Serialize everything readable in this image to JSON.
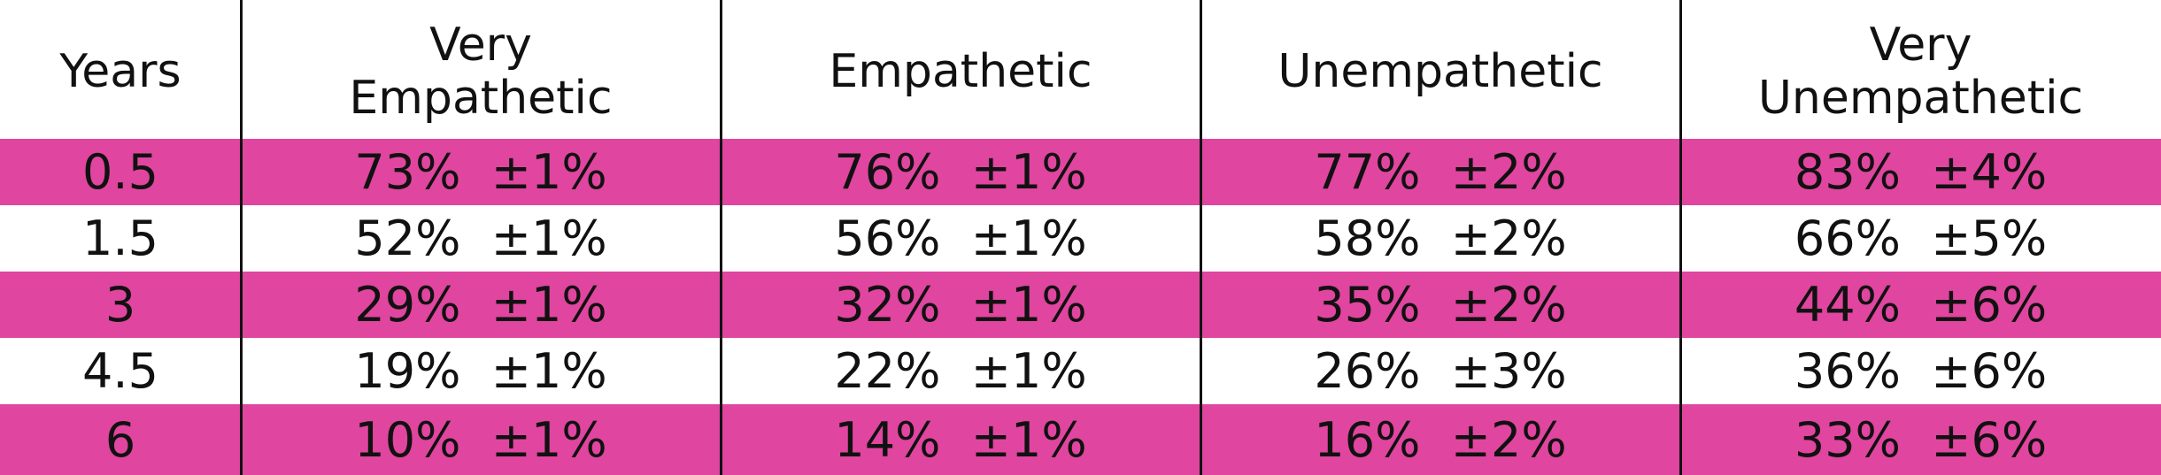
{
  "chart_data": {
    "type": "table",
    "columns": [
      [
        "Years"
      ],
      [
        "Very",
        "Empathetic"
      ],
      [
        "Empathetic"
      ],
      [
        "Unempathetic"
      ],
      [
        "Very",
        "Unempathetic"
      ]
    ],
    "rows": [
      [
        "0.5",
        "73%  ±1%",
        "76%  ±1%",
        "77%  ±2%",
        "83%  ±4%"
      ],
      [
        "1.5",
        "52%  ±1%",
        "56%  ±1%",
        "58%  ±2%",
        "66%  ±5%"
      ],
      [
        "3",
        "29%  ±1%",
        "32%  ±1%",
        "35%  ±2%",
        "44%  ±6%"
      ],
      [
        "4.5",
        "19%  ±1%",
        "22%  ±1%",
        "26%  ±3%",
        "36%  ±6%"
      ],
      [
        "6",
        "10%  ±1%",
        "14%  ±1%",
        "16%  ±2%",
        "33%  ±6%"
      ]
    ],
    "values": {
      "years": [
        0.5,
        1.5,
        3,
        4.5,
        6
      ],
      "series": [
        {
          "name": "Very Empathetic",
          "percent": [
            73,
            52,
            29,
            19,
            10
          ],
          "error": [
            1,
            1,
            1,
            1,
            1
          ]
        },
        {
          "name": "Empathetic",
          "percent": [
            76,
            56,
            32,
            22,
            14
          ],
          "error": [
            1,
            1,
            1,
            1,
            1
          ]
        },
        {
          "name": "Unempathetic",
          "percent": [
            77,
            58,
            35,
            26,
            16
          ],
          "error": [
            2,
            2,
            2,
            3,
            2
          ]
        },
        {
          "name": "Very Unempathetic",
          "percent": [
            83,
            66,
            44,
            36,
            33
          ],
          "error": [
            4,
            5,
            6,
            6,
            6
          ]
        }
      ]
    },
    "row_shading": [
      "shaded",
      "plain",
      "shaded",
      "plain",
      "shaded"
    ],
    "colors": {
      "shaded_row": "#e0459f",
      "plain_row": "#ffffff",
      "text": "#111111",
      "divider": "#111111"
    }
  }
}
